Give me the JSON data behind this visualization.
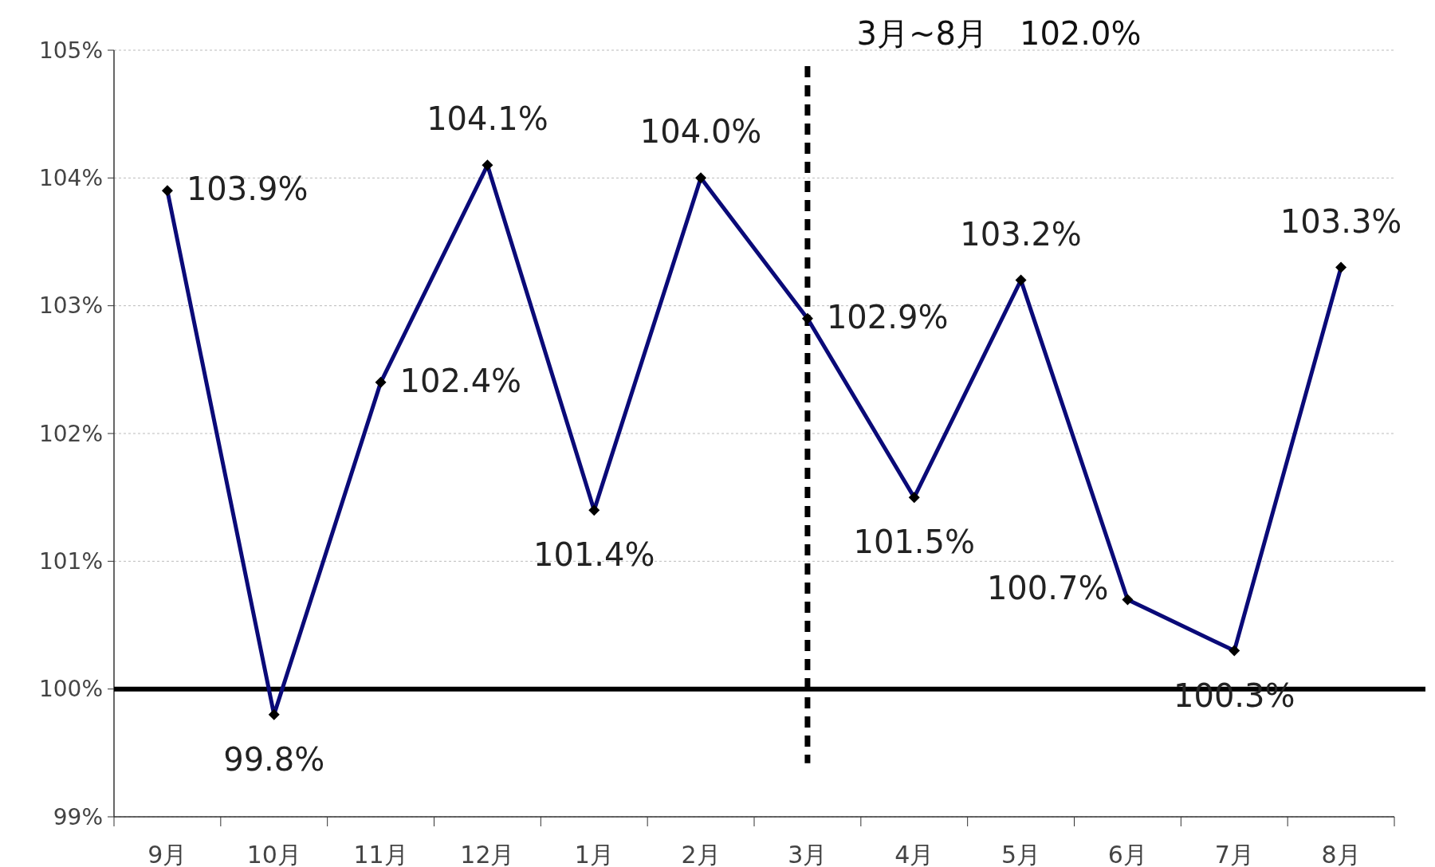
{
  "chart_data": {
    "type": "line",
    "categories": [
      "9月",
      "10月",
      "11月",
      "12月",
      "1月",
      "2月",
      "3月",
      "4月",
      "5月",
      "6月",
      "7月",
      "8月"
    ],
    "series": [
      {
        "color": "#0a0a78",
        "values": [
          103.9,
          99.8,
          102.4,
          104.1,
          101.4,
          104.0,
          102.9,
          101.5,
          103.2,
          100.7,
          100.3,
          103.3
        ],
        "value_labels": [
          "103.9%",
          "99.8%",
          "102.4%",
          "104.1%",
          "101.4%",
          "104.0%",
          "102.9%",
          "101.5%",
          "103.2%",
          "100.7%",
          "100.3%",
          "103.3%"
        ]
      }
    ],
    "ylim": [
      99,
      105
    ],
    "yticks": [
      {
        "value": 99,
        "label": "99%"
      },
      {
        "value": 100,
        "label": "100%"
      },
      {
        "value": 101,
        "label": "101%"
      },
      {
        "value": 102,
        "label": "102%"
      },
      {
        "value": 103,
        "label": "103%"
      },
      {
        "value": 104,
        "label": "104%"
      },
      {
        "value": 105,
        "label": "105%"
      }
    ],
    "grid": "y",
    "marker": "diamond",
    "line_style": "solid",
    "ref_lines": [
      {
        "axis": "y",
        "value": 100,
        "color": "#000000",
        "line_style": "solid"
      },
      {
        "axis": "x",
        "value": "3月",
        "color": "#000000",
        "line_style": "dashed"
      }
    ],
    "annotations": [
      "3月~8月　102.0%"
    ]
  }
}
